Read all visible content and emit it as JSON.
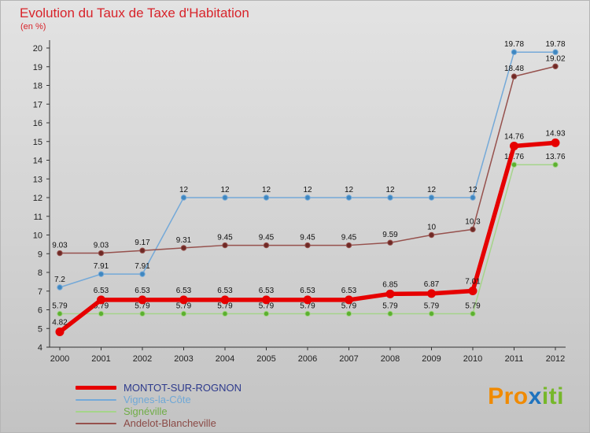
{
  "header": {
    "title": "Evolution du Taux de Taxe d'Habitation",
    "subtitle": "(en %)"
  },
  "chart_data": {
    "type": "line",
    "x": [
      2000,
      2001,
      2002,
      2003,
      2004,
      2005,
      2006,
      2007,
      2008,
      2009,
      2010,
      2011,
      2012
    ],
    "ylim": [
      4,
      20
    ],
    "ytick_step": 1,
    "grid": false,
    "legend_position": "bottom-left",
    "series": [
      {
        "name": "MONTOT-SUR-ROGNON",
        "color": "#e60000",
        "marker_color": "#e60000",
        "line_width": 5.5,
        "values": [
          4.82,
          6.53,
          6.53,
          6.53,
          6.53,
          6.53,
          6.53,
          6.53,
          6.85,
          6.87,
          7.01,
          14.76,
          14.93
        ]
      },
      {
        "name": "Vignes-la-Côte",
        "color": "#74a9d8",
        "marker_color": "#3f87c0",
        "line_width": 1.5,
        "values": [
          7.2,
          7.91,
          7.91,
          12,
          12,
          12,
          12,
          12,
          12,
          12,
          12,
          19.78,
          19.78
        ]
      },
      {
        "name": "Signéville",
        "color": "#a5d48a",
        "marker_color": "#5cb030",
        "line_width": 1.5,
        "values": [
          5.79,
          5.79,
          5.79,
          5.79,
          5.79,
          5.79,
          5.79,
          5.79,
          5.79,
          5.79,
          5.79,
          13.76,
          13.76
        ]
      },
      {
        "name": "Andelot-Blancheville",
        "color": "#96514d",
        "marker_color": "#6f2a26",
        "line_width": 1.5,
        "values": [
          9.03,
          9.03,
          9.17,
          9.31,
          9.45,
          9.45,
          9.45,
          9.45,
          9.59,
          10,
          10.3,
          18.48,
          19.02
        ]
      }
    ]
  },
  "legend": {
    "items": [
      {
        "label": "MONTOT-SUR-ROGNON",
        "swatch_color": "#e60000",
        "text_color": "#2d3a8c",
        "thick": true
      },
      {
        "label": "Vignes-la-Côte",
        "swatch_color": "#74a9d8",
        "text_color": "#6fa8d6",
        "thick": false
      },
      {
        "label": "Signéville",
        "swatch_color": "#a5d48a",
        "text_color": "#70ad47",
        "thick": false
      },
      {
        "label": "Andelot-Blancheville",
        "swatch_color": "#96514d",
        "text_color": "#8b4a46",
        "thick": false
      }
    ]
  },
  "logo": {
    "parts": [
      {
        "text": "Pro",
        "color": "#f08a00"
      },
      {
        "text": "x",
        "color": "#1e73be"
      },
      {
        "text": "iti",
        "color": "#76b72a"
      }
    ]
  }
}
